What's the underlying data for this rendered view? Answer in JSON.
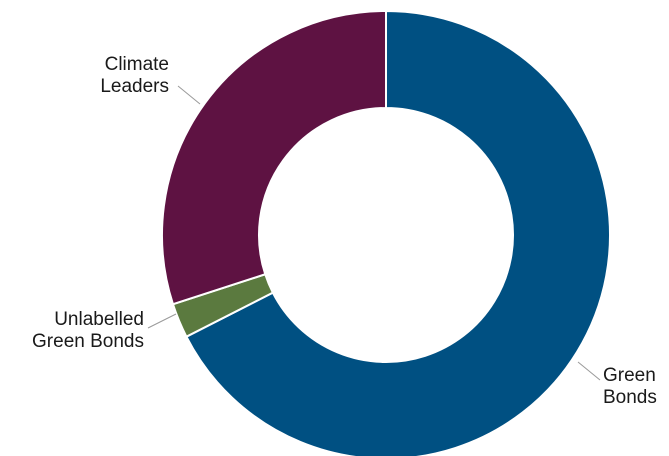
{
  "chart_data": {
    "type": "pie",
    "donut": true,
    "title": "",
    "slices": [
      {
        "label": [
          "Green",
          "Bonds"
        ],
        "value": 67.5,
        "color": "#005082"
      },
      {
        "label": [
          "Unlabelled",
          "Green Bonds"
        ],
        "value": 2.5,
        "color": "#5b7a3f"
      },
      {
        "label": [
          "Climate",
          "Leaders"
        ],
        "value": 30.0,
        "color": "#5e1242"
      }
    ],
    "start_angle": "12 o'clock",
    "direction": "clockwise",
    "legend": "none"
  }
}
